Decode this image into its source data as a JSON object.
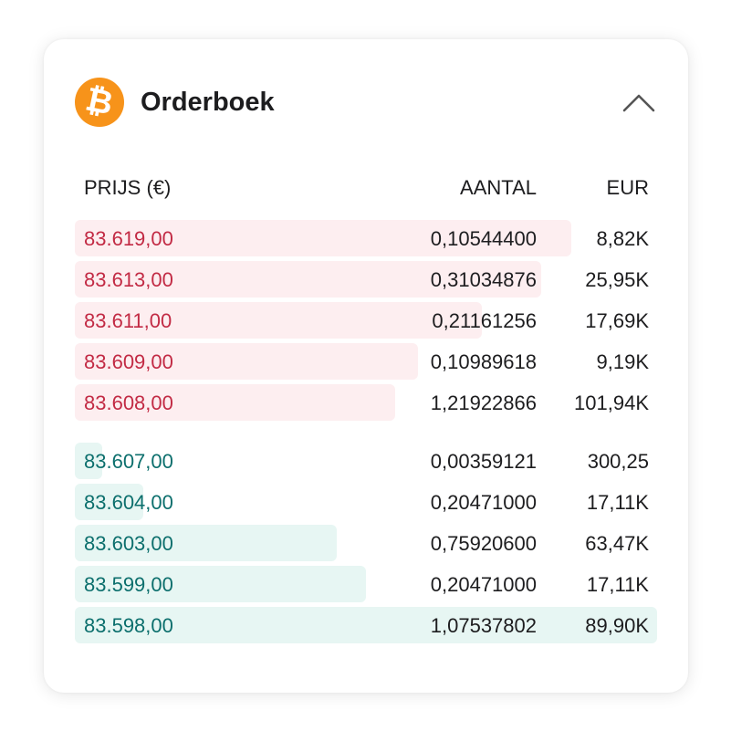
{
  "header": {
    "title": "Orderboek",
    "coin_icon": "bitcoin-icon",
    "coin_color": "#f7931a",
    "collapse_icon": "chevron-up-icon"
  },
  "columns": {
    "price": "PRIJS (€)",
    "amount": "AANTAL",
    "eur": "EUR"
  },
  "colors": {
    "ask_text": "#c22a44",
    "ask_bar": "#fdeef0",
    "bid_text": "#0c6f6d",
    "bid_bar": "#e7f6f3"
  },
  "asks": [
    {
      "price": "83.619,00",
      "amount": "0,10544400",
      "eur": "8,82K",
      "depth": 0.852
    },
    {
      "price": "83.613,00",
      "amount": "0,31034876",
      "eur": "25,95K",
      "depth": 0.801
    },
    {
      "price": "83.611,00",
      "amount": "0,21161256",
      "eur": "17,69K",
      "depth": 0.699
    },
    {
      "price": "83.609,00",
      "amount": "0,10989618",
      "eur": "9,19K",
      "depth": 0.59
    },
    {
      "price": "83.608,00",
      "amount": "1,21922866",
      "eur": "101,94K",
      "depth": 0.55
    }
  ],
  "bids": [
    {
      "price": "83.607,00",
      "amount": "0,00359121",
      "eur": "300,25",
      "depth": 0.047
    },
    {
      "price": "83.604,00",
      "amount": "0,20471000",
      "eur": "17,11K",
      "depth": 0.118
    },
    {
      "price": "83.603,00",
      "amount": "0,75920600",
      "eur": "63,47K",
      "depth": 0.45
    },
    {
      "price": "83.599,00",
      "amount": "0,20471000",
      "eur": "17,11K",
      "depth": 0.5
    },
    {
      "price": "83.598,00",
      "amount": "1,07537802",
      "eur": "89,90K",
      "depth": 1.0
    }
  ]
}
